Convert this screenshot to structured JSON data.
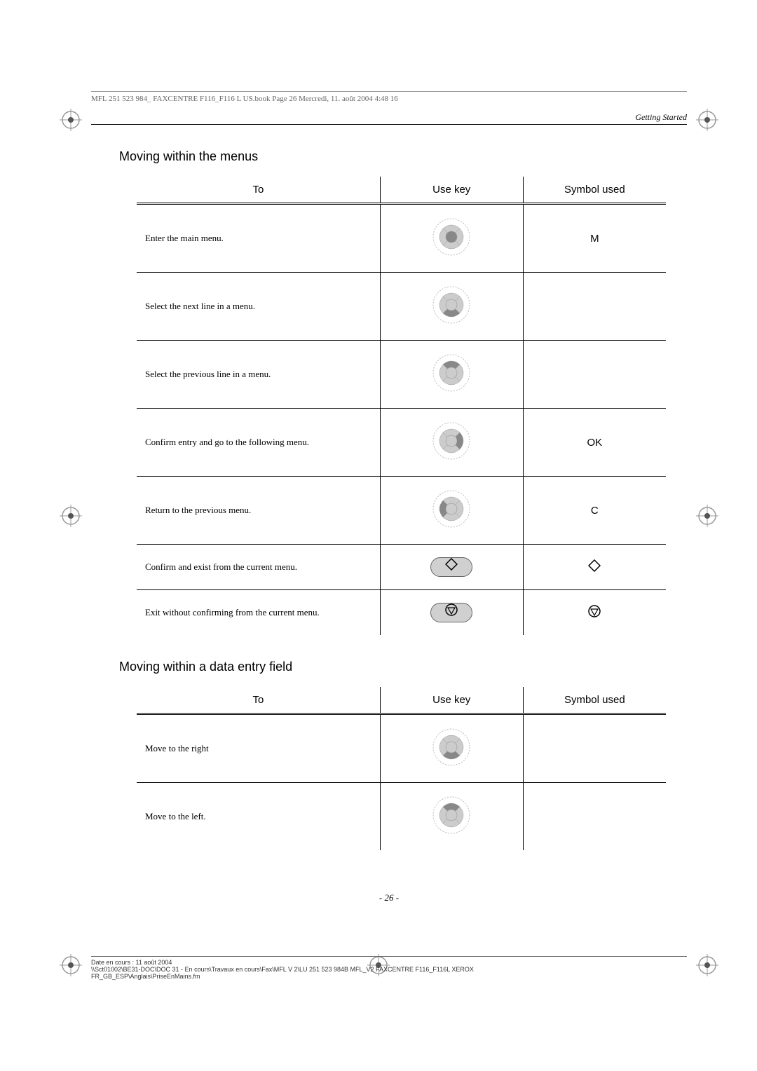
{
  "print_header": "MFL 251 523 984_ FAXCENTRE F116_F116 L US.book  Page 26  Mercredi, 11. août 2004  4:48 16",
  "running_header": "Getting Started",
  "section1_heading": "Moving within the menus",
  "section2_heading": "Moving within a data entry field",
  "table_headers": {
    "to": "To",
    "use_key": "Use key",
    "symbol": "Symbol used"
  },
  "table1_rows": [
    {
      "to": "Enter the main menu.",
      "key_type": "navpad_center",
      "symbol": "M"
    },
    {
      "to": "Select the next line in a menu.",
      "key_type": "navpad_down",
      "symbol": ""
    },
    {
      "to": "Select the previous line in a menu.",
      "key_type": "navpad_up",
      "symbol": ""
    },
    {
      "to": "Confirm entry and go to the following menu.",
      "key_type": "navpad_right",
      "symbol": "OK"
    },
    {
      "to": "Return to the previous menu.",
      "key_type": "navpad_left",
      "symbol": "C"
    },
    {
      "to": "Confirm and exist from the current menu.",
      "key_type": "pill_start",
      "symbol": "diamond"
    },
    {
      "to": "Exit without confirming from the current menu.",
      "key_type": "pill_stop",
      "symbol": "stop"
    }
  ],
  "table2_rows": [
    {
      "to": "Move to the right",
      "key_type": "navpad_down",
      "symbol": ""
    },
    {
      "to": "Move to the left.",
      "key_type": "navpad_up",
      "symbol": ""
    }
  ],
  "page_number": "- 26  -",
  "footer_line1": "Date en cours : 11 août 2004",
  "footer_line2": "\\\\Sct01002\\BE31-DOC\\DOC 31 - En cours\\Travaux en cours\\Fax\\MFL V 2\\LU 251 523 984B MFL_V2 FAXCENTRE F116_F116L XEROX",
  "footer_line3": "FR_GB_ESP\\Anglais\\PriseEnMains.fm",
  "colors": {
    "text": "#000000",
    "muted": "#666666",
    "border": "#000000",
    "pill_bg": "#d0d0d0",
    "reg_fill": "#999999"
  },
  "fonts": {
    "body_family": "Georgia, 'Times New Roman', serif",
    "heading_family": "Arial, Helvetica, sans-serif",
    "body_size": 13,
    "heading_size": 18,
    "table_header_size": 15
  },
  "table_layout": {
    "col_to_width_pct": 46,
    "col_key_width_pct": 27,
    "col_symbol_width_pct": 27,
    "row_padding_v": 18,
    "row_padding_h": 12
  }
}
